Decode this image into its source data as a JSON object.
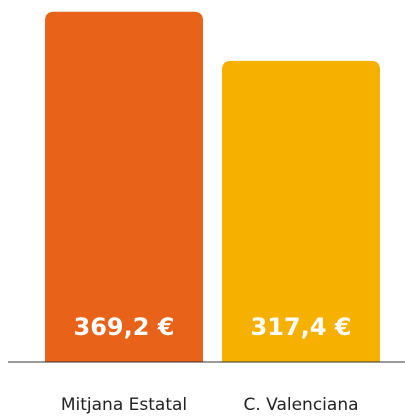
{
  "chart_data": {
    "type": "bar",
    "categories": [
      "Mitjana Estatal",
      "C. Valenciana"
    ],
    "values": [
      369.2,
      317.4
    ],
    "value_labels": [
      "369,2 €",
      "317,4 €"
    ],
    "colors": [
      "#e8621a",
      "#f6b000"
    ],
    "ylim": [
      0,
      370
    ]
  }
}
